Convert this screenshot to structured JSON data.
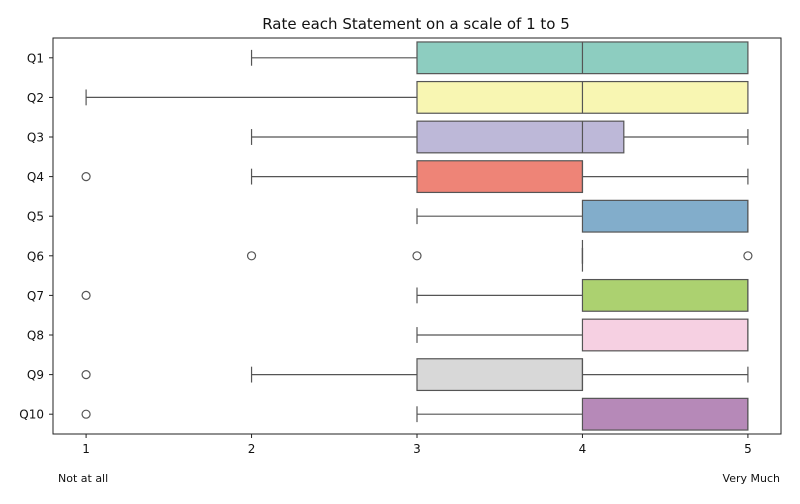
{
  "chart_data": {
    "type": "boxplot",
    "orientation": "horizontal",
    "title": "Rate each Statement on a scale of 1 to 5",
    "xlabel": "",
    "ylabel": "",
    "xlim": [
      0.8,
      5.2
    ],
    "x_ticks": [
      1,
      2,
      3,
      4,
      5
    ],
    "grid": false,
    "categories": [
      "Q1",
      "Q2",
      "Q3",
      "Q4",
      "Q5",
      "Q6",
      "Q7",
      "Q8",
      "Q9",
      "Q10"
    ],
    "boxes": [
      {
        "label": "Q1",
        "whislo": 2,
        "q1": 3,
        "med": 4,
        "q3": 5,
        "whishi": 5,
        "fliers": [],
        "color": "#8dcdc0"
      },
      {
        "label": "Q2",
        "whislo": 1,
        "q1": 3,
        "med": 4,
        "q3": 5,
        "whishi": 5,
        "fliers": [],
        "color": "#f8f6b2"
      },
      {
        "label": "Q3",
        "whislo": 2,
        "q1": 3,
        "med": 4,
        "q3": 4.25,
        "whishi": 5,
        "fliers": [],
        "color": "#bdb8d8"
      },
      {
        "label": "Q4",
        "whislo": 2,
        "q1": 3,
        "med": 4,
        "q3": 4,
        "whishi": 5,
        "fliers": [
          1
        ],
        "color": "#ee8477"
      },
      {
        "label": "Q5",
        "whislo": 3,
        "q1": 4,
        "med": 5,
        "q3": 5,
        "whishi": 5,
        "fliers": [],
        "color": "#82adcb"
      },
      {
        "label": "Q6",
        "whislo": 4,
        "q1": 4,
        "med": 4,
        "q3": 4,
        "whishi": 4,
        "fliers": [
          2,
          3,
          5
        ],
        "color": "#f6b16b"
      },
      {
        "label": "Q7",
        "whislo": 3,
        "q1": 4,
        "med": 5,
        "q3": 5,
        "whishi": 5,
        "fliers": [
          1
        ],
        "color": "#acd170"
      },
      {
        "label": "Q8",
        "whislo": 3,
        "q1": 4,
        "med": 5,
        "q3": 5,
        "whishi": 5,
        "fliers": [],
        "color": "#f6d0e2"
      },
      {
        "label": "Q9",
        "whislo": 2,
        "q1": 3,
        "med": 4,
        "q3": 4,
        "whishi": 5,
        "fliers": [
          1
        ],
        "color": "#d8d8d8"
      },
      {
        "label": "Q10",
        "whislo": 3,
        "q1": 4,
        "med": 5,
        "q3": 5,
        "whishi": 5,
        "fliers": [
          1
        ],
        "color": "#b689b8"
      }
    ],
    "annotations": {
      "left": "Not at all",
      "right": "Very Much"
    }
  }
}
